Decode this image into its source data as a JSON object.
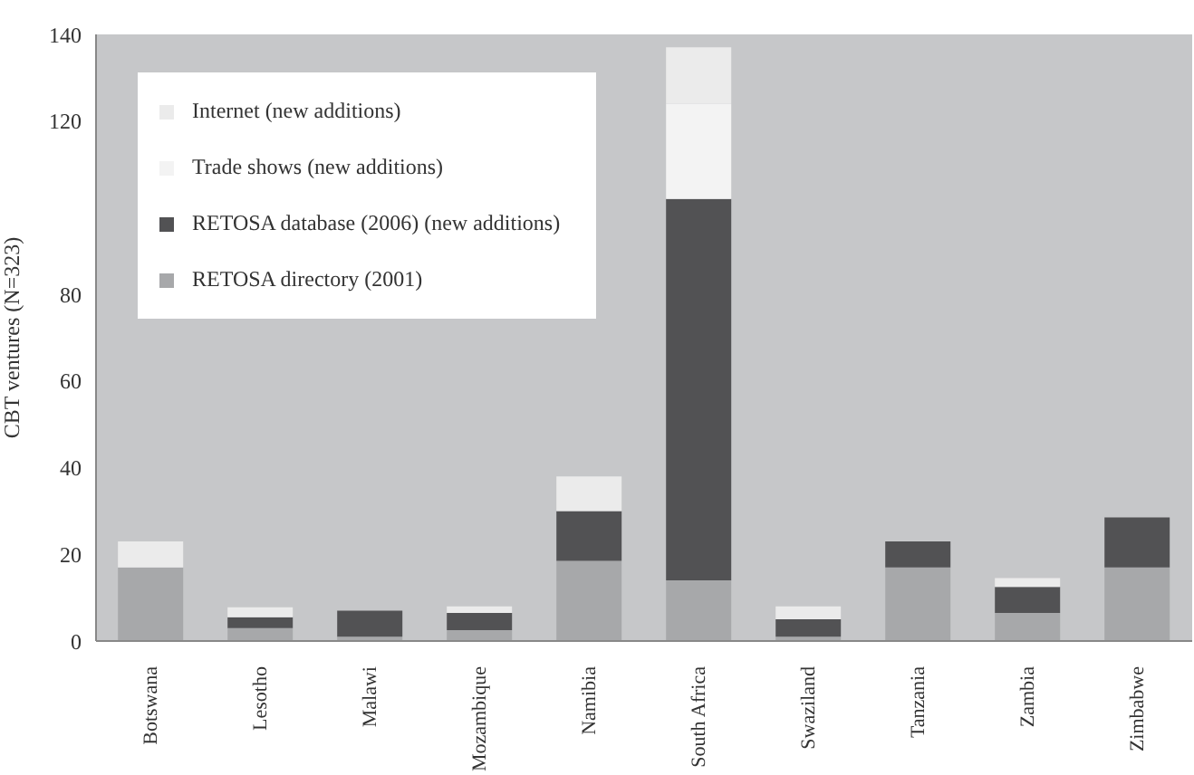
{
  "chart_data": {
    "type": "bar",
    "stacked": true,
    "ylabel": "CBT ventures (N=323)",
    "categories": [
      "Botswana",
      "Lesotho",
      "Malawi",
      "Mozambique",
      "Namibia",
      "South Africa",
      "Swaziland",
      "Tanzania",
      "Zambia",
      "Zimbabwe"
    ],
    "series": [
      {
        "name": "RETOSA directory (2001)",
        "color": "#a7a8aa",
        "values": [
          17,
          3,
          1,
          2.5,
          18.5,
          14,
          1,
          17,
          6.5,
          17
        ]
      },
      {
        "name": "RETOSA database (2006) (new additions)",
        "color": "#525254",
        "values": [
          0,
          2.5,
          6,
          4,
          11.5,
          88,
          4,
          6,
          6,
          11.5
        ]
      },
      {
        "name": "Trade shows (new additions)",
        "color": "#f3f3f3",
        "values": [
          0,
          0,
          0,
          0,
          0,
          22,
          0,
          0,
          0,
          0
        ]
      },
      {
        "name": "Internet (new additions)",
        "color": "#ebebeb",
        "values": [
          6,
          2.3,
          0,
          1.5,
          8,
          13,
          3,
          0,
          2,
          0
        ]
      }
    ],
    "ylim": [
      0,
      140
    ],
    "yticks": [
      0,
      20,
      40,
      60,
      80,
      120,
      140
    ],
    "grid": false,
    "legend": "top left"
  }
}
